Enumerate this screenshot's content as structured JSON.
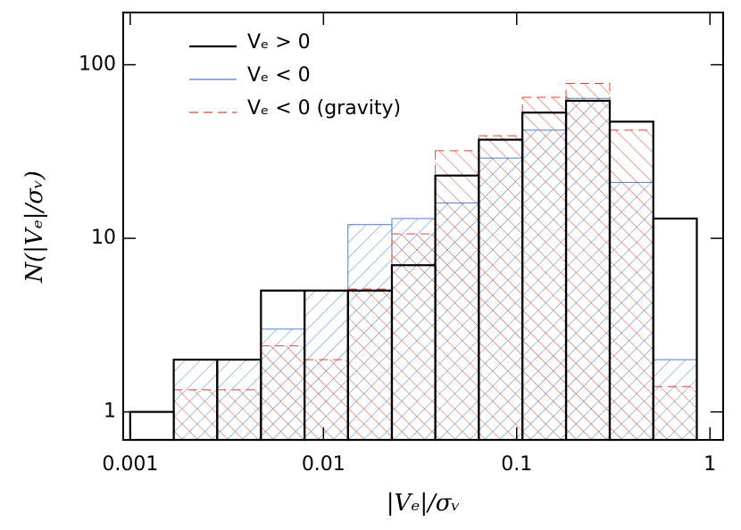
{
  "chart_data": {
    "type": "histogram",
    "xlabel": "|Vₑ|/σᵥ",
    "ylabel": "N(|Vₑ|/σᵥ)",
    "bins": [
      0.001,
      0.00168,
      0.00282,
      0.00475,
      0.00798,
      0.0134,
      0.0226,
      0.0379,
      0.0637,
      0.107,
      0.18,
      0.303,
      0.509,
      0.855
    ],
    "series": [
      {
        "name": "Vₑ > 0",
        "color": "#000000",
        "values": [
          1,
          2,
          2,
          5,
          5,
          5,
          7,
          23,
          37,
          53,
          62,
          47,
          13
        ]
      },
      {
        "name": "Vₑ < 0",
        "color": "#4a7fd4",
        "values": [
          null,
          2,
          2,
          3,
          5,
          12,
          13,
          16,
          29,
          42,
          64,
          21,
          2
        ]
      },
      {
        "name": "Vₑ < 0 (gravity)",
        "color": "#e0442c",
        "values": [
          null,
          1.34,
          1.34,
          2.4,
          2,
          5.1,
          10.6,
          32,
          39,
          65,
          78,
          42,
          1.4
        ]
      }
    ],
    "xlim": [
      0.00092,
      1.17
    ],
    "ylim": [
      0.69,
      200
    ],
    "xticks": [
      0.001,
      0.01,
      0.1,
      1
    ],
    "yticks": [
      1,
      10,
      100
    ],
    "xscale": "log",
    "yscale": "log",
    "legend": "upper left"
  }
}
